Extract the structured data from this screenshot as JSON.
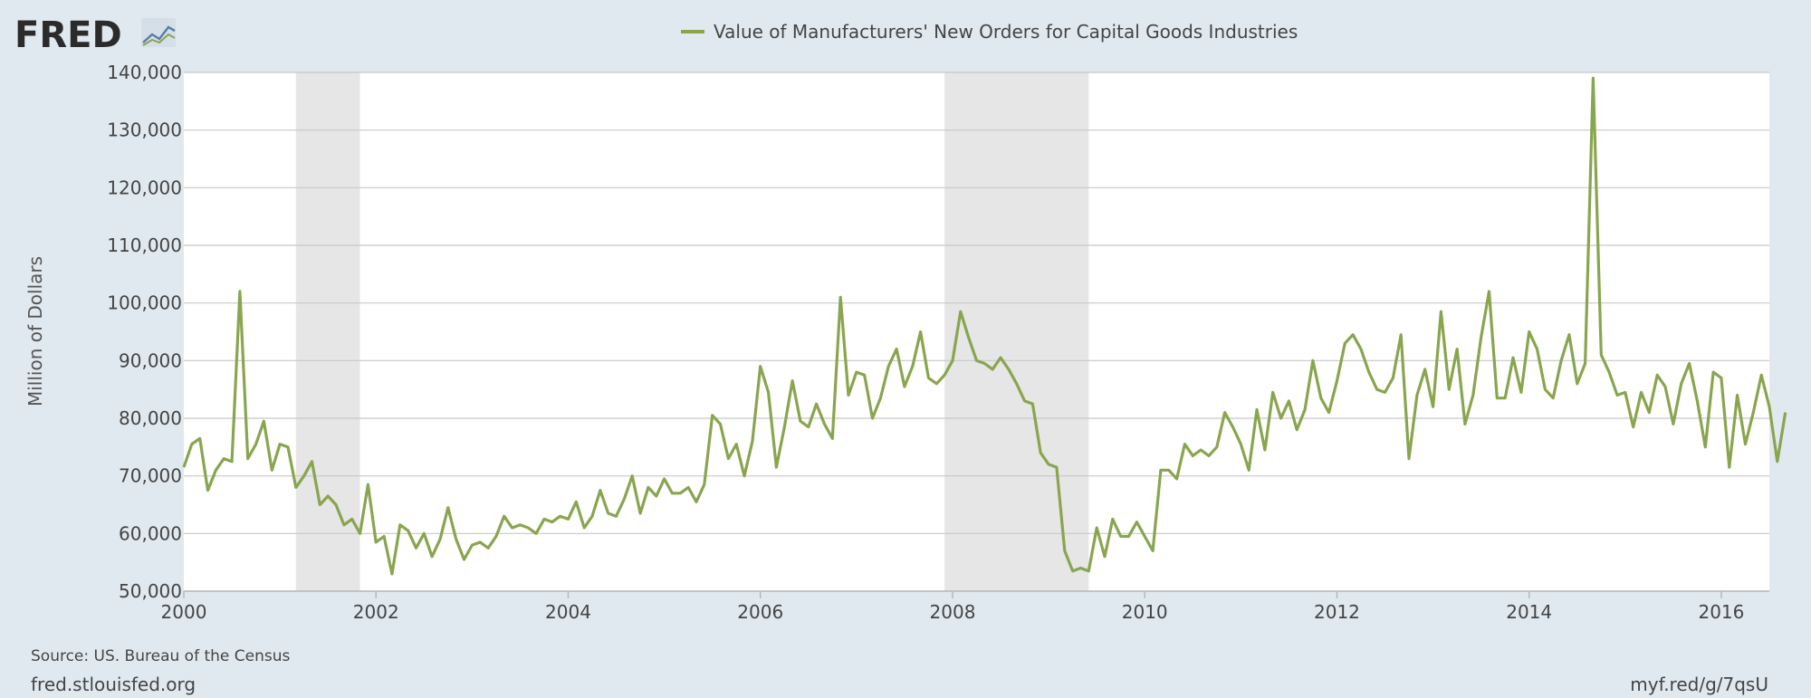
{
  "brand": {
    "name": "FRED",
    "icon": "line-chart-icon"
  },
  "legend": {
    "label": "Value of Manufacturers' New Orders for Capital Goods Industries"
  },
  "colors": {
    "background": "#e1e9f0",
    "plot_background": "#ffffff",
    "series": "#89a54e",
    "grid": "#c8c8c8",
    "recession": "#e6e6e6",
    "text": "#444444"
  },
  "footer": {
    "source": "Source: US. Bureau of the Census",
    "site": "fred.stlouisfed.org",
    "short_link": "myf.red/g/7qsU"
  },
  "chart_data": {
    "type": "line",
    "title": "",
    "xlabel": "",
    "ylabel": "Million of Dollars",
    "xlim": [
      2000.0,
      2016.5
    ],
    "ylim": [
      50000,
      140000
    ],
    "x_ticks": [
      2000,
      2002,
      2004,
      2006,
      2008,
      2010,
      2012,
      2014,
      2016
    ],
    "x_tick_labels": [
      "2000",
      "2002",
      "2004",
      "2006",
      "2008",
      "2010",
      "2012",
      "2014",
      "2016"
    ],
    "y_ticks": [
      50000,
      60000,
      70000,
      80000,
      90000,
      100000,
      110000,
      120000,
      130000,
      140000
    ],
    "y_tick_labels": [
      "50,000",
      "60,000",
      "70,000",
      "80,000",
      "90,000",
      "100,000",
      "110,000",
      "120,000",
      "130,000",
      "140,000"
    ],
    "grid": true,
    "legend_position": "top-center",
    "recessions": [
      {
        "start": "2001-03",
        "end": "2001-11"
      },
      {
        "start": "2007-12",
        "end": "2009-06"
      }
    ],
    "series": [
      {
        "name": "Value of Manufacturers' New Orders for Capital Goods Industries",
        "start": "2000-01",
        "frequency": "monthly",
        "values": [
          71500,
          75500,
          76500,
          67500,
          71000,
          73000,
          72500,
          102000,
          73000,
          75500,
          79500,
          71000,
          75500,
          75000,
          68000,
          70000,
          72500,
          65000,
          66500,
          65000,
          61500,
          62500,
          60000,
          68500,
          58500,
          59500,
          53000,
          61500,
          60500,
          57500,
          60000,
          56000,
          59000,
          64500,
          59000,
          55500,
          58000,
          58500,
          57500,
          59500,
          63000,
          61000,
          61500,
          61000,
          60000,
          62500,
          62000,
          63000,
          62500,
          65500,
          61000,
          63000,
          67500,
          63500,
          63000,
          66000,
          70000,
          63500,
          68000,
          66500,
          69500,
          67000,
          67000,
          68000,
          65500,
          68500,
          80500,
          79000,
          73000,
          75500,
          70000,
          76000,
          89000,
          84500,
          71500,
          78500,
          86500,
          79500,
          78500,
          82500,
          79000,
          76500,
          101000,
          84000,
          88000,
          87500,
          80000,
          83500,
          89000,
          92000,
          85500,
          89000,
          95000,
          87000,
          86000,
          87500,
          90000,
          98500,
          94000,
          90000,
          89500,
          88500,
          90500,
          88500,
          86000,
          83000,
          82500,
          74000,
          72000,
          71500,
          57000,
          53500,
          54000,
          53500,
          61000,
          56000,
          62500,
          59500,
          59500,
          62000,
          59500,
          57000,
          71000,
          71000,
          69500,
          75500,
          73500,
          74500,
          73500,
          75000,
          81000,
          78500,
          75500,
          71000,
          81500,
          74500,
          84500,
          80000,
          83000,
          78000,
          81500,
          90000,
          83500,
          81000,
          86500,
          93000,
          94500,
          92000,
          88000,
          85000,
          84500,
          87000,
          94500,
          73000,
          84000,
          88500,
          82000,
          98500,
          85000,
          92000,
          79000,
          84000,
          94000,
          102000,
          83500,
          83500,
          90500,
          84500,
          95000,
          92000,
          85000,
          83500,
          90000,
          94500,
          86000,
          89500,
          139000,
          91000,
          88000,
          84000,
          84500,
          78500,
          84500,
          81000,
          87500,
          85500,
          79000,
          86000,
          89500,
          83000,
          75000,
          88000,
          87000,
          71500,
          84000,
          75500,
          81000,
          87500,
          82000,
          72500,
          81000
        ]
      }
    ]
  }
}
